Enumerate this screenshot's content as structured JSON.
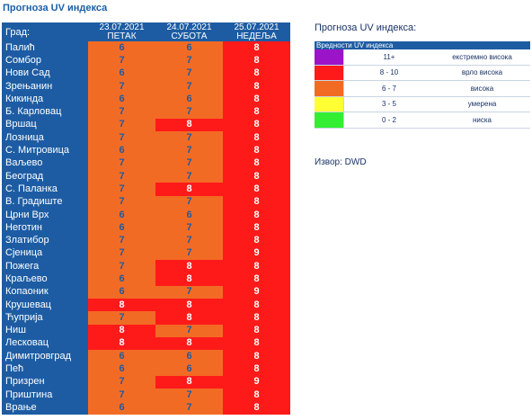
{
  "page_title": "Прогноза UV индекса",
  "table": {
    "city_header": "Град:",
    "days": [
      {
        "date": "23.07.2021",
        "weekday": "ПЕТАК"
      },
      {
        "date": "24.07.2021",
        "weekday": "СУБОТА"
      },
      {
        "date": "25.07.2021",
        "weekday": "НЕДЕЉА"
      }
    ],
    "rows": [
      {
        "city": "Палић",
        "values": [
          "6",
          "6",
          "8"
        ]
      },
      {
        "city": "Сомбор",
        "values": [
          "7",
          "7",
          "8"
        ]
      },
      {
        "city": "Нови Сад",
        "values": [
          "6",
          "7",
          "8"
        ]
      },
      {
        "city": "Зрењанин",
        "values": [
          "7",
          "7",
          "8"
        ]
      },
      {
        "city": "Кикинда",
        "values": [
          "6",
          "6",
          "8"
        ]
      },
      {
        "city": "Б. Карловац",
        "values": [
          "7",
          "7",
          "8"
        ]
      },
      {
        "city": "Вршац",
        "values": [
          "7",
          "8",
          "8"
        ]
      },
      {
        "city": "Лозница",
        "values": [
          "7",
          "7",
          "8"
        ]
      },
      {
        "city": "С. Митровица",
        "values": [
          "6",
          "7",
          "8"
        ]
      },
      {
        "city": "Ваљево",
        "values": [
          "7",
          "7",
          "8"
        ]
      },
      {
        "city": "Београд",
        "values": [
          "7",
          "7",
          "8"
        ]
      },
      {
        "city": "С. Паланка",
        "values": [
          "7",
          "8",
          "8"
        ]
      },
      {
        "city": "В. Градиште",
        "values": [
          "7",
          "7",
          "8"
        ]
      },
      {
        "city": "Црни Врх",
        "values": [
          "6",
          "6",
          "8"
        ]
      },
      {
        "city": "Неготин",
        "values": [
          "6",
          "7",
          "8"
        ]
      },
      {
        "city": "Златибор",
        "values": [
          "7",
          "7",
          "8"
        ]
      },
      {
        "city": "Сјеница",
        "values": [
          "7",
          "7",
          "9"
        ]
      },
      {
        "city": "Пожега",
        "values": [
          "7",
          "8",
          "8"
        ]
      },
      {
        "city": "Краљево",
        "values": [
          "6",
          "8",
          "8"
        ]
      },
      {
        "city": "Копаоник",
        "values": [
          "6",
          "7",
          "9"
        ]
      },
      {
        "city": "Крушевац",
        "values": [
          "8",
          "8",
          "8"
        ]
      },
      {
        "city": "Ћуприја",
        "values": [
          "7",
          "8",
          "8"
        ]
      },
      {
        "city": "Ниш",
        "values": [
          "8",
          "7",
          "8"
        ]
      },
      {
        "city": "Лесковац",
        "values": [
          "8",
          "8",
          "8"
        ]
      },
      {
        "city": "Димитровград",
        "values": [
          "6",
          "6",
          "8"
        ]
      },
      {
        "city": "Пећ",
        "values": [
          "6",
          "6",
          "8"
        ]
      },
      {
        "city": "Призрен",
        "values": [
          "7",
          "8",
          "9"
        ]
      },
      {
        "city": "Приштина",
        "values": [
          "7",
          "7",
          "8"
        ]
      },
      {
        "city": "Врање",
        "values": [
          "6",
          "7",
          "8"
        ]
      }
    ]
  },
  "legend": {
    "title": "Прогноза UV индекса:",
    "header": "Вредности UV индекса",
    "items": [
      {
        "color": "#9c14c9",
        "range": "11+",
        "label": "екстремно висока"
      },
      {
        "color": "#ff1a1a",
        "range": "8 - 10",
        "label": "врло висока"
      },
      {
        "color": "#f26b25",
        "range": "6 - 7",
        "label": "висока"
      },
      {
        "color": "#ffff33",
        "range": "3 - 5",
        "label": "умерена"
      },
      {
        "color": "#33ee33",
        "range": "0 - 2",
        "label": "ниска"
      }
    ]
  },
  "source": "Извор: DWD"
}
